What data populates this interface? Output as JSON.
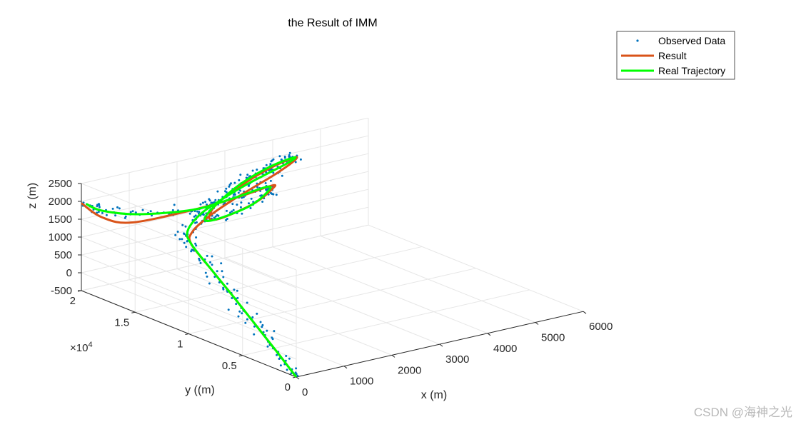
{
  "chart_data": {
    "type": "scatter3d+line3d",
    "title": "the Result of IMM",
    "xlabel": "x (m)",
    "ylabel": "y ((m)",
    "zlabel": "z (m)",
    "y_exponent": "×10",
    "y_exponent_power": "4",
    "xlim": [
      0,
      6000
    ],
    "ylim": [
      0,
      20000
    ],
    "zlim": [
      -500,
      2500
    ],
    "x_ticks": [
      "0",
      "1000",
      "2000",
      "3000",
      "4000",
      "5000",
      "6000"
    ],
    "y_ticks": [
      "0",
      "0.5",
      "1",
      "1.5",
      "2"
    ],
    "z_ticks": [
      "-500",
      "0",
      "500",
      "1000",
      "1500",
      "2000",
      "2500"
    ],
    "grid": true,
    "legend_position": "top-right",
    "legend": [
      "Observed Data",
      "Result",
      "Real Trajectory"
    ],
    "colors": {
      "observed": "#0072BD",
      "result": "#D95319",
      "real": "#00FF00",
      "axis": "#262626",
      "grid": "#e6e6e6"
    },
    "real_trajectory": [
      [
        0,
        0,
        -500
      ],
      [
        20,
        2000,
        0
      ],
      [
        30,
        4000,
        500
      ],
      [
        40,
        6000,
        1000
      ],
      [
        40,
        8000,
        1500
      ],
      [
        50,
        10000,
        2000
      ],
      [
        200,
        11000,
        2200
      ],
      [
        800,
        12500,
        2300
      ],
      [
        1600,
        14000,
        2300
      ],
      [
        2400,
        15500,
        2250
      ],
      [
        3200,
        17000,
        2150
      ],
      [
        4000,
        18500,
        2050
      ],
      [
        4300,
        19300,
        2000
      ],
      [
        3700,
        18800,
        2000
      ],
      [
        2700,
        17200,
        2000
      ],
      [
        1700,
        15000,
        2000
      ],
      [
        1000,
        13000,
        2050
      ],
      [
        1000,
        12000,
        2150
      ],
      [
        1600,
        11500,
        2400
      ],
      [
        2100,
        12000,
        2600
      ],
      [
        2300,
        13000,
        2550
      ],
      [
        1800,
        14000,
        2250
      ],
      [
        1200,
        15000,
        2000
      ],
      [
        500,
        17000,
        1850
      ],
      [
        200,
        19000,
        1800
      ],
      [
        100,
        20000,
        1900
      ]
    ],
    "estimated_result": [
      [
        0,
        0,
        -500
      ],
      [
        20,
        2000,
        0
      ],
      [
        30,
        4000,
        500
      ],
      [
        40,
        6000,
        1000
      ],
      [
        40,
        8000,
        1500
      ],
      [
        50,
        10000,
        2000
      ],
      [
        300,
        11000,
        2150
      ],
      [
        1000,
        12500,
        2200
      ],
      [
        1800,
        14000,
        2200
      ],
      [
        2600,
        15500,
        2150
      ],
      [
        3400,
        17000,
        2100
      ],
      [
        4100,
        18500,
        2050
      ],
      [
        4300,
        19300,
        2000
      ],
      [
        3600,
        18700,
        1950
      ],
      [
        2600,
        17000,
        1950
      ],
      [
        1700,
        15000,
        2000
      ],
      [
        1100,
        13000,
        2050
      ],
      [
        1100,
        12000,
        2150
      ],
      [
        1700,
        11500,
        2450
      ],
      [
        2200,
        12000,
        2650
      ],
      [
        2400,
        13000,
        2550
      ],
      [
        1900,
        14000,
        2250
      ],
      [
        1300,
        15000,
        2000
      ],
      [
        400,
        17000,
        1650
      ],
      [
        100,
        18500,
        1700
      ],
      [
        0,
        20000,
        1950
      ]
    ]
  },
  "watermark": "CSDN @海神之光"
}
